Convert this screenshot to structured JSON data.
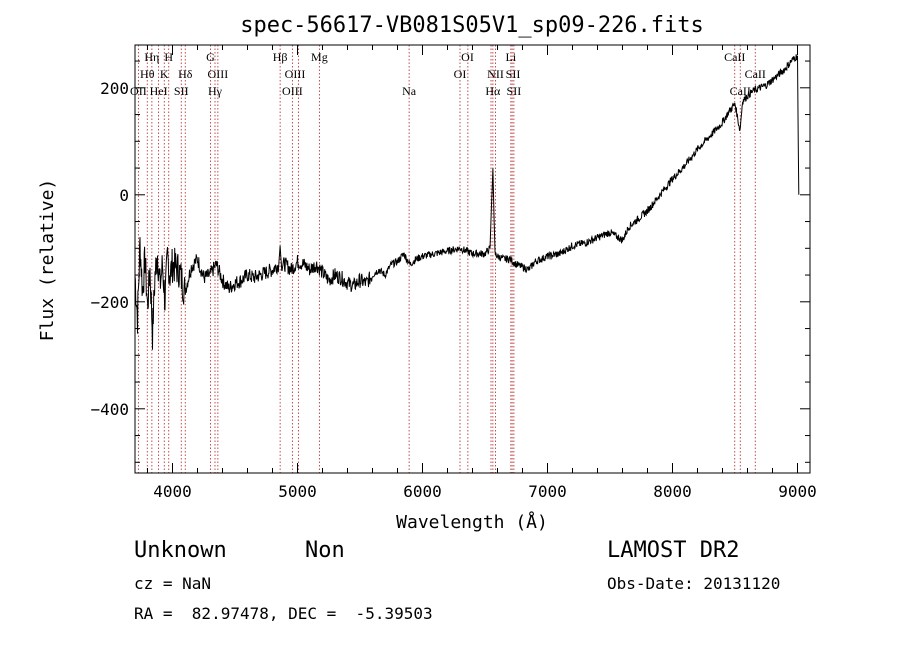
{
  "chart_data": {
    "type": "line",
    "title": "spec-56617-VB081S05V1_sp09-226.fits",
    "xlabel": "Wavelength (Å)",
    "ylabel": "Flux (relative)",
    "xlim": [
      3700,
      9100
    ],
    "ylim": [
      -520,
      280
    ],
    "x_ticks": [
      4000,
      5000,
      6000,
      7000,
      8000,
      9000
    ],
    "x_tick_labels": [
      "4000",
      "5000",
      "6000",
      "7000",
      "8000",
      "9000"
    ],
    "y_ticks": [
      -400,
      -200,
      0,
      200
    ],
    "y_tick_labels": [
      "−400",
      "−200",
      "0",
      "200"
    ],
    "grid": false,
    "series": [
      {
        "color": "#000000",
        "x": [
          3700,
          3720,
          3740,
          3760,
          3780,
          3800,
          3820,
          3840,
          3860,
          3880,
          3900,
          3920,
          3940,
          3960,
          3980,
          4000,
          4050,
          4100,
          4150,
          4200,
          4250,
          4300,
          4350,
          4400,
          4450,
          4500,
          4550,
          4600,
          4650,
          4700,
          4750,
          4800,
          4850,
          4861,
          4870,
          4900,
          4950,
          5000,
          5050,
          5100,
          5150,
          5200,
          5250,
          5300,
          5350,
          5400,
          5450,
          5500,
          5550,
          5600,
          5650,
          5700,
          5750,
          5800,
          5850,
          5900,
          5950,
          6000,
          6100,
          6200,
          6300,
          6400,
          6500,
          6540,
          6563,
          6580,
          6600,
          6650,
          6700,
          6750,
          6800,
          6850,
          6900,
          7000,
          7100,
          7200,
          7300,
          7400,
          7500,
          7600,
          7650,
          7700,
          7800,
          7900,
          8000,
          8100,
          8200,
          8300,
          8400,
          8450,
          8500,
          8540,
          8560,
          8600,
          8650,
          8700,
          8750,
          8800,
          8850,
          8900,
          8950,
          9000,
          9010
        ],
        "y": [
          -150,
          -230,
          -90,
          -180,
          -120,
          -210,
          -140,
          -260,
          -150,
          -110,
          -170,
          -130,
          -200,
          -115,
          -150,
          -130,
          -140,
          -180,
          -135,
          -120,
          -155,
          -150,
          -130,
          -160,
          -175,
          -165,
          -160,
          -150,
          -155,
          -150,
          -145,
          -140,
          -130,
          -95,
          -130,
          -130,
          -140,
          -125,
          -130,
          -140,
          -130,
          -145,
          -160,
          -150,
          -155,
          -165,
          -170,
          -160,
          -165,
          -150,
          -140,
          -150,
          -130,
          -125,
          -110,
          -130,
          -120,
          -115,
          -110,
          -105,
          -100,
          -110,
          -110,
          -100,
          50,
          -110,
          -115,
          -120,
          -120,
          -130,
          -135,
          -140,
          -125,
          -115,
          -110,
          -95,
          -90,
          -80,
          -70,
          -85,
          -60,
          -50,
          -30,
          0,
          30,
          55,
          85,
          110,
          135,
          155,
          170,
          120,
          175,
          185,
          195,
          200,
          205,
          215,
          225,
          235,
          250,
          260,
          0
        ]
      }
    ],
    "line_labels": [
      {
        "text": "Hη",
        "x": 3835,
        "row": 0
      },
      {
        "text": "H",
        "x": 3970,
        "row": 0
      },
      {
        "text": "Hθ",
        "x": 3798,
        "row": 1
      },
      {
        "text": "K",
        "x": 3934,
        "row": 1
      },
      {
        "text": "Hδ",
        "x": 4102,
        "row": 1
      },
      {
        "text": "OII",
        "x": 3727,
        "row": 2
      },
      {
        "text": "HeI",
        "x": 3889,
        "row": 2
      },
      {
        "text": "SII",
        "x": 4070,
        "row": 2
      },
      {
        "text": "G",
        "x": 4304,
        "row": 0
      },
      {
        "text": "OIII",
        "x": 4363,
        "row": 1
      },
      {
        "text": "Hγ",
        "x": 4340,
        "row": 2
      },
      {
        "text": "Hβ",
        "x": 4861,
        "row": 0
      },
      {
        "text": "Mg",
        "x": 5175,
        "row": 0
      },
      {
        "text": "OIII",
        "x": 4980,
        "row": 1
      },
      {
        "text": "OIII",
        "x": 4959,
        "row": 2
      },
      {
        "text": "Na",
        "x": 5893,
        "row": 2
      },
      {
        "text": "OI",
        "x": 6360,
        "row": 0
      },
      {
        "text": "OI",
        "x": 6300,
        "row": 1
      },
      {
        "text": "Li",
        "x": 6707,
        "row": 0
      },
      {
        "text": "NII",
        "x": 6584,
        "row": 1
      },
      {
        "text": "SII",
        "x": 6724,
        "row": 1
      },
      {
        "text": "Hα",
        "x": 6563,
        "row": 2
      },
      {
        "text": "SII",
        "x": 6731,
        "row": 2
      },
      {
        "text": "CaII",
        "x": 8498,
        "row": 0
      },
      {
        "text": "CaII",
        "x": 8662,
        "row": 1
      },
      {
        "text": "CaII",
        "x": 8542,
        "row": 2
      }
    ],
    "line_positions": [
      3727,
      3798,
      3835,
      3889,
      3934,
      3970,
      4070,
      4102,
      4304,
      4340,
      4363,
      4861,
      4959,
      5007,
      5175,
      5893,
      6300,
      6363,
      6548,
      6563,
      6584,
      6707,
      6717,
      6731,
      8498,
      8542,
      8662
    ],
    "marker_color": "#b22222"
  },
  "info": {
    "object": "Unknown",
    "class": "Non",
    "survey": "LAMOST DR2",
    "cz": "cz = NaN",
    "obs_date": "Obs-Date: 20131120",
    "coords": "RA =  82.97478, DEC =  -5.39503"
  }
}
